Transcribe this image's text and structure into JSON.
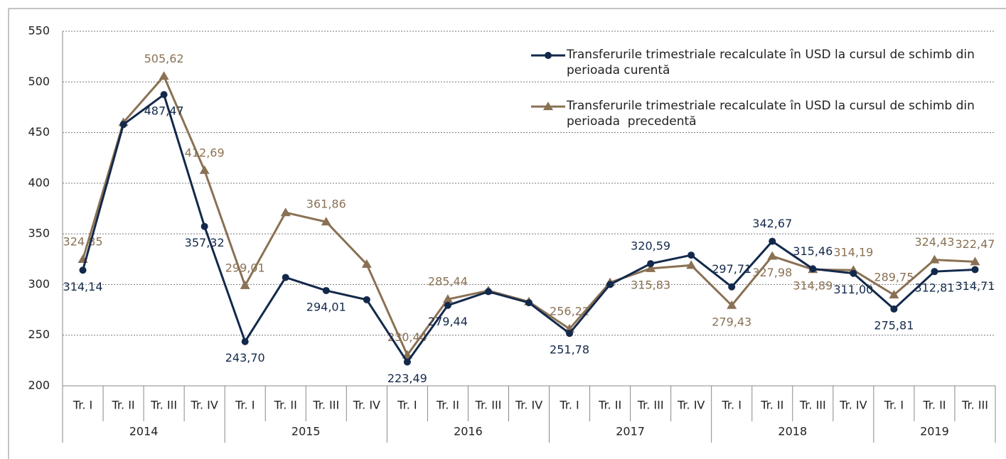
{
  "chart_data": {
    "type": "line",
    "groups": [
      {
        "name": "2014",
        "categories": [
          "Tr. I",
          "Tr. II",
          "Tr. III",
          "Tr. IV"
        ]
      },
      {
        "name": "2015",
        "categories": [
          "Tr. I",
          "Tr. II",
          "Tr. III",
          "Tr. IV"
        ]
      },
      {
        "name": "2016",
        "categories": [
          "Tr. I",
          "Tr. II",
          "Tr. III",
          "Tr. IV"
        ]
      },
      {
        "name": "2017",
        "categories": [
          "Tr. I",
          "Tr. II",
          "Tr. III",
          "Tr. IV"
        ]
      },
      {
        "name": "2018",
        "categories": [
          "Tr. I",
          "Tr. II",
          "Tr. III",
          "Tr. IV"
        ]
      },
      {
        "name": "2019",
        "categories": [
          "Tr. I",
          "Tr. II",
          "Tr. III"
        ]
      }
    ],
    "series": [
      {
        "name": "Transferurile trimestriale recalculate în USD la cursul de schimb din perioada curentă",
        "color": "#13294b",
        "marker": "circle",
        "values": [
          314.14,
          458,
          487.47,
          357.32,
          243.7,
          307,
          294.01,
          285,
          223.49,
          279.44,
          293,
          282,
          251.78,
          300,
          320.59,
          329,
          297.71,
          342.67,
          315.46,
          311.0,
          275.81,
          312.81,
          314.71
        ],
        "value_labels": [
          "314,14",
          null,
          "487,47",
          "357,32",
          "243,70",
          null,
          "294,01",
          null,
          "223,49",
          "279,44",
          null,
          null,
          "251,78",
          null,
          "320,59",
          null,
          "297,71",
          "342,67",
          "315,46",
          "311,00",
          "275,81",
          "312,81",
          "314,71"
        ]
      },
      {
        "name": "Transferurile trimestriale recalculate în USD la cursul de schimb din perioada  precedentă",
        "color": "#8a7154",
        "marker": "triangle",
        "values": [
          324.85,
          460,
          505.62,
          412.69,
          299.01,
          371,
          361.86,
          320,
          230.44,
          285.44,
          294,
          283,
          256.22,
          302,
          315.83,
          319,
          279.43,
          327.98,
          314.89,
          314.19,
          289.75,
          324.43,
          322.47
        ],
        "value_labels": [
          "324,85",
          null,
          "505,62",
          "412,69",
          "299,01",
          null,
          "361,86",
          null,
          "230,44",
          "285,44",
          null,
          null,
          "256,22",
          null,
          "315,83",
          null,
          "279,43",
          "327,98",
          "314,89",
          "314,19",
          "289,75",
          "324,43",
          "322,47"
        ]
      }
    ],
    "ylim": [
      200,
      550
    ],
    "yticks": [
      200,
      250,
      300,
      350,
      400,
      450,
      500,
      550
    ],
    "grid": true,
    "legend": "top-right"
  }
}
